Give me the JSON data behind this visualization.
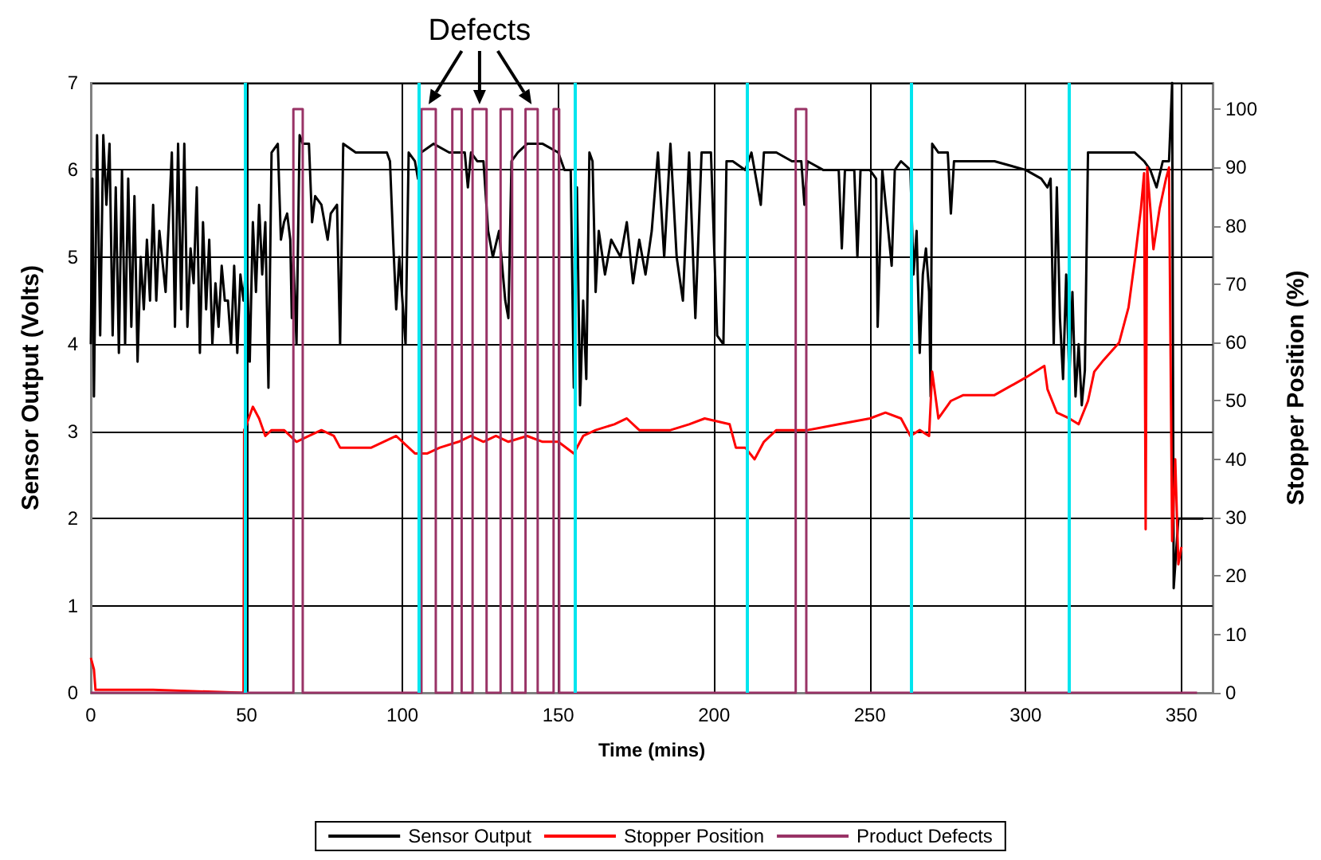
{
  "chart_data": {
    "type": "line",
    "xlabel": "Time (mins)",
    "ylabel": "Sensor Output (Volts)",
    "y2label": "Stopper Position (%)",
    "xlim": [
      0,
      360
    ],
    "xticks": [
      0,
      50,
      100,
      150,
      200,
      250,
      300,
      350
    ],
    "ylim": [
      0,
      7
    ],
    "yticks": [
      0,
      1,
      2,
      3,
      4,
      5,
      6,
      7
    ],
    "y2lim": [
      0,
      104.5
    ],
    "y2ticks": [
      0,
      10,
      20,
      30,
      40,
      50,
      60,
      70,
      80,
      90,
      100
    ],
    "grid": true,
    "legend": "bottom",
    "marker": "none",
    "annotations": [
      "Defects"
    ],
    "ref_lines": [
      {
        "axis": "x",
        "value": 49.3,
        "label": null,
        "color": "#00e5ee"
      },
      {
        "axis": "x",
        "value": 105,
        "label": null,
        "color": "#00e5ee"
      },
      {
        "axis": "x",
        "value": 155.2,
        "label": null,
        "color": "#00e5ee"
      },
      {
        "axis": "x",
        "value": 210.7,
        "label": null,
        "color": "#00e5ee"
      },
      {
        "axis": "x",
        "value": 263,
        "label": null,
        "color": "#00e5ee"
      },
      {
        "axis": "x",
        "value": 314,
        "label": null,
        "color": "#00e5ee"
      }
    ],
    "series": [
      {
        "name": "Sensor Output",
        "color": "#000000",
        "x": [
          0,
          0.5,
          1,
          2,
          3,
          4,
          5,
          6,
          7,
          8,
          9,
          10,
          11,
          12,
          13,
          14,
          15,
          16,
          17,
          18,
          19,
          20,
          21,
          22,
          24,
          26,
          27,
          28,
          29,
          30,
          31,
          32,
          33,
          34,
          35,
          36,
          37,
          38,
          39,
          40,
          41,
          42,
          43,
          44,
          45,
          46,
          47,
          48,
          49,
          50,
          51,
          52,
          53,
          54,
          55,
          56,
          57,
          58,
          60,
          61,
          62,
          63,
          64,
          64.5,
          65,
          66,
          67,
          68,
          70,
          71,
          72,
          74,
          76,
          77,
          79,
          80,
          81,
          85,
          90,
          95,
          96,
          97,
          98,
          99,
          100,
          101,
          102,
          104,
          105,
          106,
          110,
          115,
          120,
          121,
          122,
          124,
          126,
          127.5,
          129,
          131,
          133,
          134,
          135,
          137,
          140,
          145,
          150,
          152,
          154,
          155,
          156,
          157,
          158,
          159,
          160,
          161,
          162,
          163,
          165,
          167,
          170,
          172,
          174,
          176,
          178,
          180,
          182,
          184,
          186,
          188,
          190,
          192,
          194,
          196,
          199,
          201,
          203,
          204,
          206,
          210,
          212,
          215,
          216,
          220,
          225,
          228,
          229,
          230,
          235,
          240,
          241,
          242,
          245,
          246,
          247,
          250,
          252,
          252.5,
          254,
          257,
          258,
          260,
          263,
          264,
          265,
          266,
          267,
          268,
          269,
          269.5,
          270,
          272,
          275,
          276,
          277,
          280,
          290,
          300,
          305,
          307,
          308,
          309,
          310,
          311,
          312,
          313,
          314,
          315,
          316,
          317,
          318,
          319,
          320,
          325,
          330,
          335,
          338,
          340,
          342,
          344,
          346,
          347,
          347.5,
          349,
          357
        ],
        "values": [
          4.0,
          5.9,
          3.4,
          6.4,
          4.1,
          6.4,
          5.6,
          6.3,
          4.1,
          5.8,
          3.9,
          6.0,
          4.0,
          5.9,
          4.2,
          5.7,
          3.8,
          5.0,
          4.4,
          5.2,
          4.5,
          5.6,
          4.5,
          5.3,
          4.6,
          6.2,
          4.2,
          6.3,
          4.4,
          6.3,
          4.2,
          5.1,
          4.7,
          5.8,
          3.9,
          5.4,
          4.4,
          5.2,
          4.0,
          4.7,
          4.2,
          4.9,
          4.5,
          4.5,
          4.0,
          4.9,
          3.9,
          4.8,
          4.5,
          5.0,
          3.8,
          5.4,
          4.6,
          5.6,
          4.8,
          5.4,
          3.5,
          6.2,
          6.3,
          5.2,
          5.4,
          5.5,
          5.2,
          4.3,
          5.0,
          4.0,
          6.4,
          6.3,
          6.3,
          5.4,
          5.7,
          5.6,
          5.2,
          5.5,
          5.6,
          4.0,
          6.3,
          6.2,
          6.2,
          6.2,
          6.1,
          5.2,
          4.4,
          5.0,
          4.5,
          4.0,
          6.2,
          6.1,
          5.9,
          6.2,
          6.3,
          6.2,
          6.2,
          5.8,
          6.2,
          6.1,
          6.1,
          5.3,
          5.0,
          5.3,
          4.5,
          4.3,
          6.1,
          6.2,
          6.3,
          6.3,
          6.2,
          6.0,
          6.0,
          3.5,
          5.8,
          3.3,
          4.5,
          3.6,
          6.2,
          6.1,
          4.6,
          5.3,
          4.8,
          5.2,
          5.0,
          5.4,
          4.7,
          5.2,
          4.8,
          5.3,
          6.2,
          5.0,
          6.3,
          5.0,
          4.5,
          6.2,
          4.3,
          6.2,
          6.2,
          4.1,
          4.0,
          6.1,
          6.1,
          6.0,
          6.2,
          5.6,
          6.2,
          6.2,
          6.1,
          6.1,
          5.6,
          6.1,
          6.0,
          6.0,
          5.1,
          6.0,
          6.0,
          5.0,
          6.0,
          6.0,
          5.9,
          4.2,
          6.0,
          4.9,
          6.0,
          6.1,
          6.0,
          4.8,
          5.3,
          3.9,
          4.8,
          5.1,
          4.6,
          3.4,
          6.3,
          6.2,
          6.2,
          5.5,
          6.1,
          6.1,
          6.1,
          6.0,
          5.9,
          5.8,
          5.9,
          4.0,
          5.8,
          4.3,
          3.6,
          4.8,
          3.6,
          4.6,
          3.4,
          4.0,
          3.3,
          3.7,
          6.2,
          6.2,
          6.2,
          6.2,
          6.1,
          6.0,
          5.8,
          6.1,
          6.1,
          7.0,
          1.2,
          2.0,
          2.0
        ]
      },
      {
        "name": "Stopper Position",
        "color": "#ff0000",
        "axis": "y2",
        "x": [
          0,
          1,
          1.5,
          20,
          49,
          49.2,
          50,
          52,
          54,
          56,
          58,
          62,
          66,
          70,
          74,
          78,
          80,
          90,
          98,
          104,
          108,
          112,
          118,
          122,
          126,
          130,
          134,
          140,
          145,
          150,
          155,
          158,
          162,
          168,
          172,
          176,
          182,
          186,
          192,
          197,
          205,
          207,
          210,
          213,
          216,
          220,
          230,
          240,
          250,
          255,
          260,
          263,
          266,
          269,
          270,
          272,
          276,
          280,
          290,
          300,
          306,
          307,
          310,
          314,
          317,
          320,
          322,
          325,
          330,
          333,
          335,
          337,
          338,
          338.5,
          339,
          341,
          343,
          345,
          346,
          347,
          348,
          349,
          350
        ],
        "values": [
          6,
          4,
          0.5,
          0.5,
          0,
          45,
          46,
          49,
          47,
          44,
          45,
          45,
          43,
          44,
          45,
          44,
          42,
          42,
          44,
          41,
          41,
          42,
          43,
          44,
          43,
          44,
          43,
          44,
          43,
          43,
          41,
          44,
          45,
          46,
          47,
          45,
          45,
          45,
          46,
          47,
          46,
          42,
          42,
          40,
          43,
          45,
          45,
          46,
          47,
          48,
          47,
          44,
          45,
          44,
          55,
          47,
          50,
          51,
          51,
          54,
          56,
          52,
          48,
          47,
          46,
          50,
          55,
          57,
          60,
          66,
          74,
          83,
          89,
          28,
          90,
          76,
          83,
          88,
          90,
          26,
          40,
          22,
          25
        ]
      },
      {
        "name": "Product Defects",
        "color": "#993366",
        "axis": "y2",
        "x": [
          0,
          65,
          65,
          68,
          68,
          106.1,
          106.1,
          110.7,
          110.7,
          116,
          116,
          119,
          119,
          122.5,
          122.5,
          127,
          127,
          131.5,
          131.5,
          135.2,
          135.2,
          139.5,
          139.5,
          143.4,
          143.4,
          148.5,
          148.5,
          150.3,
          150.3,
          226.2,
          226.2,
          229.6,
          229.6,
          355
        ],
        "values": [
          0,
          0,
          100,
          100,
          0,
          0,
          100,
          100,
          0,
          0,
          100,
          100,
          0,
          0,
          100,
          100,
          0,
          0,
          100,
          100,
          0,
          0,
          100,
          100,
          0,
          0,
          100,
          100,
          0,
          0,
          100,
          100,
          0,
          0
        ]
      }
    ]
  }
}
